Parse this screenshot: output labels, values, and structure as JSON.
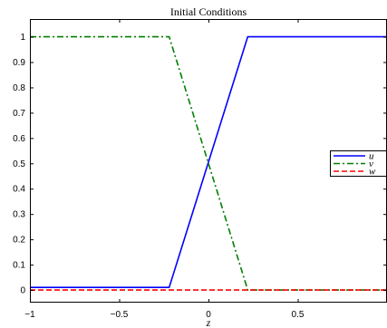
{
  "chart_data": {
    "type": "line",
    "title": "Initial Conditions",
    "xlabel": "z",
    "ylabel": "",
    "xlim": [
      -1,
      1
    ],
    "ylim": [
      -0.05,
      1.07
    ],
    "x_ticks": [
      -1,
      -0.5,
      0,
      0.5
    ],
    "x_tick_labels": [
      "−1",
      "−0.5",
      "0",
      "0.5"
    ],
    "y_ticks": [
      0,
      0.1,
      0.2,
      0.3,
      0.4,
      0.5,
      0.6,
      0.7,
      0.8,
      0.9,
      1
    ],
    "y_tick_labels": [
      "0",
      "0.1",
      "0.2",
      "0.3",
      "0.4",
      "0.5",
      "0.6",
      "0.7",
      "0.8",
      "0.9",
      "1"
    ],
    "grid": false,
    "legend_position": "right",
    "series": [
      {
        "name": "u",
        "color": "#0000ff",
        "dash": "solid",
        "x": [
          -1,
          -0.22,
          0.22,
          1
        ],
        "y": [
          0.01,
          0.01,
          1.0,
          1.0
        ]
      },
      {
        "name": "v",
        "color": "#007f00",
        "dash": "dashdot",
        "x": [
          -1,
          -0.22,
          0.22,
          1
        ],
        "y": [
          1.0,
          1.0,
          0.0,
          0.0
        ]
      },
      {
        "name": "w",
        "color": "#ff0000",
        "dash": "dashed",
        "x": [
          -1,
          1
        ],
        "y": [
          0.0,
          0.0
        ]
      }
    ]
  }
}
